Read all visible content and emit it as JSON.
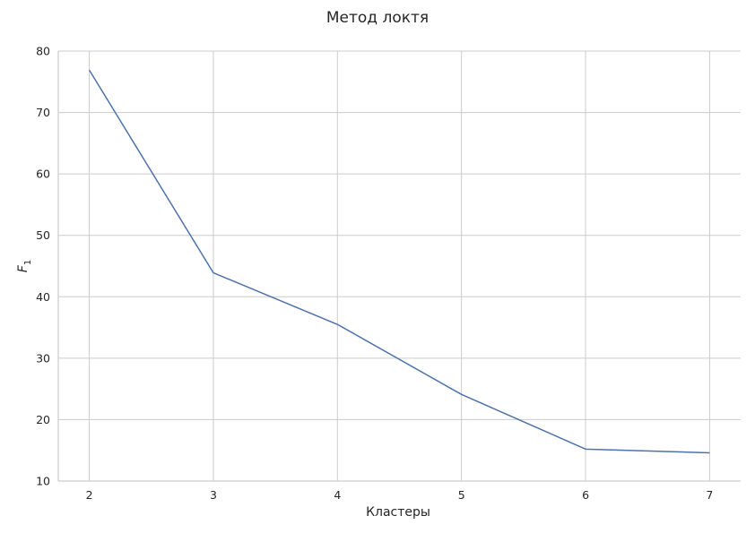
{
  "chart_data": {
    "type": "line",
    "title": "Метод локтя",
    "xlabel": "Кластеры",
    "ylabel": "F",
    "ylabel_subscript": "1",
    "x": [
      2,
      3,
      4,
      5,
      6,
      7
    ],
    "series": [
      {
        "values": [
          76.9,
          43.9,
          35.5,
          24.1,
          15.2,
          14.6
        ],
        "color": "#4c72b0"
      }
    ],
    "xlim": [
      1.75,
      7.25
    ],
    "ylim": [
      10,
      80
    ],
    "xticks": [
      "2",
      "3",
      "4",
      "5",
      "6",
      "7"
    ],
    "yticks": [
      "10",
      "20",
      "30",
      "40",
      "50",
      "60",
      "70",
      "80"
    ],
    "grid": true,
    "grid_color": "#cccccc",
    "axis_color": "#cccccc"
  }
}
